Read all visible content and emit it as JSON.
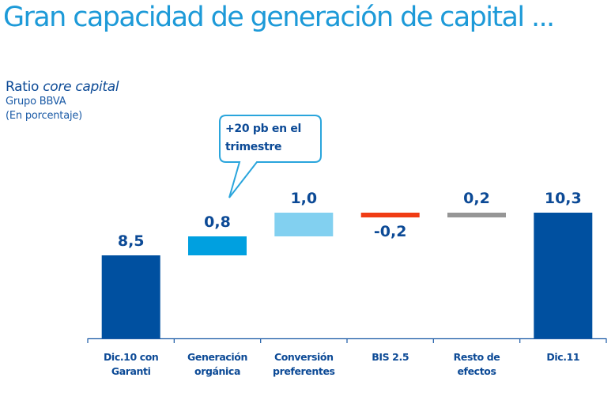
{
  "page_title": "Gran capacidad de generación de capital ...",
  "chart_header": {
    "title_regular": "Ratio ",
    "title_italic": "core capital",
    "subtitle_1": "Grupo BBVA",
    "subtitle_2": "(En porcentaje)"
  },
  "callout": {
    "line_1": "+20 pb en el",
    "line_2": "trimestre"
  },
  "colors": {
    "title": "#1d9ad8",
    "text": "#0c4a96",
    "total": "#0050a0",
    "organic": "#00a0e0",
    "preferentes": "#82d0f0",
    "negative": "#f03c14",
    "other": "#969696",
    "axis": "#1a5aa6"
  },
  "chart_data": {
    "type": "waterfall",
    "title": "Ratio core capital",
    "subtitle": "Grupo BBVA (En porcentaje)",
    "xlabel": "",
    "ylabel": "",
    "ylim": [
      5.0,
      11.0
    ],
    "grid": false,
    "legend": "none",
    "categories": [
      [
        "Dic.10 con",
        "Garanti"
      ],
      [
        "Generación",
        "orgánica"
      ],
      [
        "Conversión",
        "preferentes"
      ],
      [
        "BIS 2.5"
      ],
      [
        "Resto de",
        "efectos"
      ],
      [
        "Dic.11"
      ]
    ],
    "steps": [
      {
        "kind": "total",
        "value": 8.5,
        "label": "8,5",
        "color_key": "total"
      },
      {
        "kind": "delta",
        "value": 0.8,
        "label": "0,8",
        "color_key": "organic"
      },
      {
        "kind": "delta",
        "value": 1.0,
        "label": "1,0",
        "color_key": "preferentes"
      },
      {
        "kind": "delta",
        "value": -0.2,
        "label": "-0,2",
        "color_key": "negative"
      },
      {
        "kind": "delta",
        "value": 0.2,
        "label": "0,2",
        "color_key": "other"
      },
      {
        "kind": "total",
        "value": 10.3,
        "label": "10,3",
        "color_key": "total"
      }
    ],
    "annotations": [
      "+20 pb en el trimestre"
    ]
  }
}
